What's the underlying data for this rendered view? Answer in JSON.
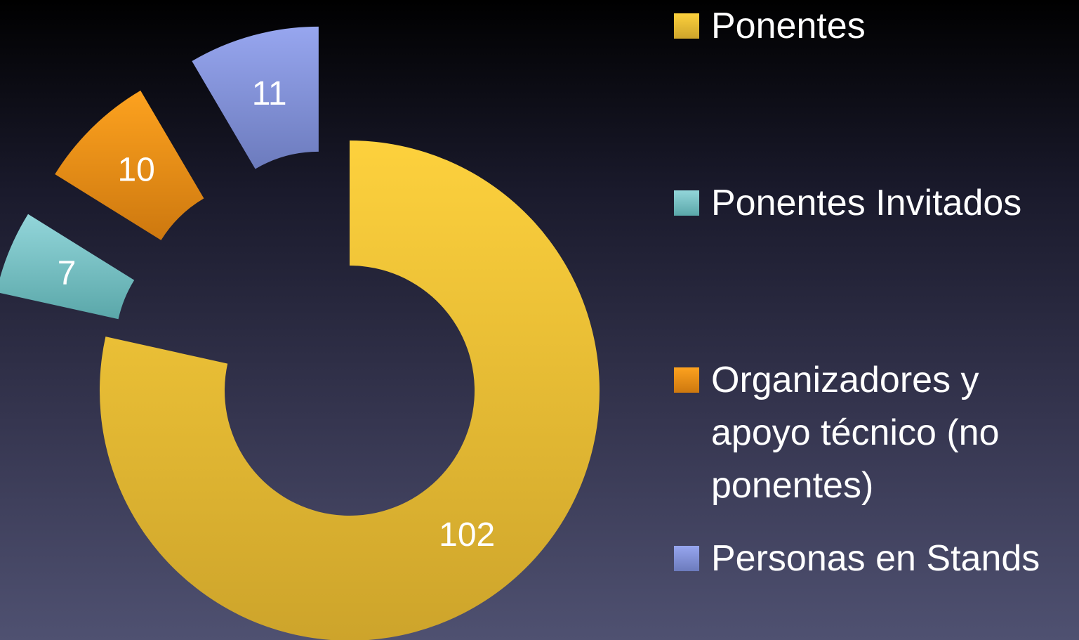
{
  "chart_data": {
    "type": "donut",
    "categories": [
      "Ponentes",
      "Ponentes Invitados",
      "Organizadores y apoyo técnico (no ponentes)",
      "Personas en Stands"
    ],
    "values": [
      102,
      7,
      10,
      11
    ],
    "colors": [
      [
        "#fdd13d",
        "#cda42b"
      ],
      [
        "#93d6da",
        "#5aa7a9"
      ],
      [
        "#fda21f",
        "#cd780f"
      ],
      [
        "#97a6ef",
        "#6c7bbd"
      ]
    ],
    "legend": "right"
  }
}
